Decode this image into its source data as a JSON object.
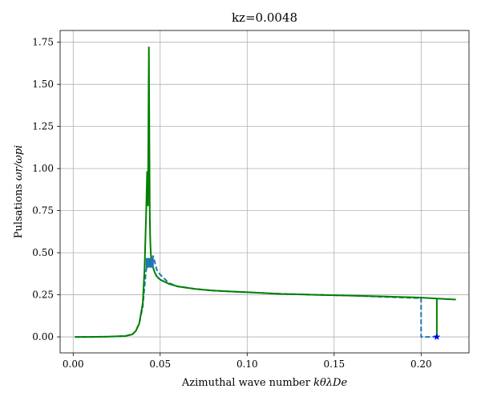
{
  "chart_data": {
    "type": "line",
    "title": "kz=0.0048",
    "xlabel_prefix": "Azimuthal wave number ",
    "xlabel_math": "kθλDe",
    "ylabel_prefix": "Pulsations ",
    "ylabel_math": "ωr/ωpi",
    "xlim": [
      -0.0075,
      0.2275
    ],
    "ylim": [
      -0.095,
      1.82
    ],
    "grid": true,
    "x_ticks": [
      0.0,
      0.05,
      0.1,
      0.15,
      0.2
    ],
    "x_tick_labels": [
      "0.00",
      "0.05",
      "0.10",
      "0.15",
      "0.20"
    ],
    "y_ticks": [
      0.0,
      0.25,
      0.5,
      0.75,
      1.0,
      1.25,
      1.5,
      1.75
    ],
    "y_tick_labels": [
      "0.00",
      "0.25",
      "0.50",
      "0.75",
      "1.00",
      "1.25",
      "1.50",
      "1.75"
    ],
    "series": [
      {
        "name": "dashed-blue",
        "color": "#1f77b4",
        "style": "dashed",
        "x": [
          0.001,
          0.01,
          0.02,
          0.03,
          0.034,
          0.036,
          0.038,
          0.04,
          0.041,
          0.042,
          0.043,
          0.044,
          0.045,
          0.046,
          0.047,
          0.048,
          0.05,
          0.055,
          0.06,
          0.07,
          0.08,
          0.09,
          0.1,
          0.12,
          0.14,
          0.16,
          0.18,
          0.2,
          0.2,
          0.21,
          0.21
        ],
        "y": [
          0.0,
          0.0,
          0.001,
          0.005,
          0.015,
          0.035,
          0.08,
          0.18,
          0.3,
          0.4,
          0.43,
          0.44,
          0.45,
          0.48,
          0.44,
          0.4,
          0.37,
          0.32,
          0.3,
          0.285,
          0.275,
          0.27,
          0.265,
          0.255,
          0.25,
          0.245,
          0.237,
          0.23,
          0.0,
          0.0,
          0.0
        ]
      },
      {
        "name": "solid-green",
        "color": "#008000",
        "style": "solid",
        "x": [
          0.001,
          0.01,
          0.02,
          0.03,
          0.034,
          0.036,
          0.038,
          0.04,
          0.041,
          0.042,
          0.0425,
          0.043,
          0.0435,
          0.044,
          0.0442,
          0.0444,
          0.0446,
          0.045,
          0.046,
          0.047,
          0.048,
          0.05,
          0.055,
          0.06,
          0.07,
          0.08,
          0.09,
          0.1,
          0.12,
          0.14,
          0.16,
          0.18,
          0.2,
          0.209,
          0.209,
          0.209,
          0.22
        ],
        "y": [
          0.0,
          0.0,
          0.001,
          0.005,
          0.015,
          0.035,
          0.08,
          0.2,
          0.4,
          0.75,
          0.98,
          0.78,
          1.72,
          0.75,
          0.62,
          0.55,
          0.5,
          0.45,
          0.41,
          0.38,
          0.36,
          0.34,
          0.315,
          0.3,
          0.285,
          0.275,
          0.27,
          0.265,
          0.255,
          0.25,
          0.245,
          0.24,
          0.233,
          0.228,
          0.0,
          0.228,
          0.222
        ]
      }
    ],
    "markers": [
      {
        "name": "blue-square-marker",
        "x": 0.044,
        "y": 0.44,
        "shape": "square",
        "color": "#1f77b4"
      },
      {
        "name": "blue-star-marker",
        "x": 0.209,
        "y": 0.0,
        "shape": "star",
        "color": "#0000ff"
      }
    ]
  }
}
